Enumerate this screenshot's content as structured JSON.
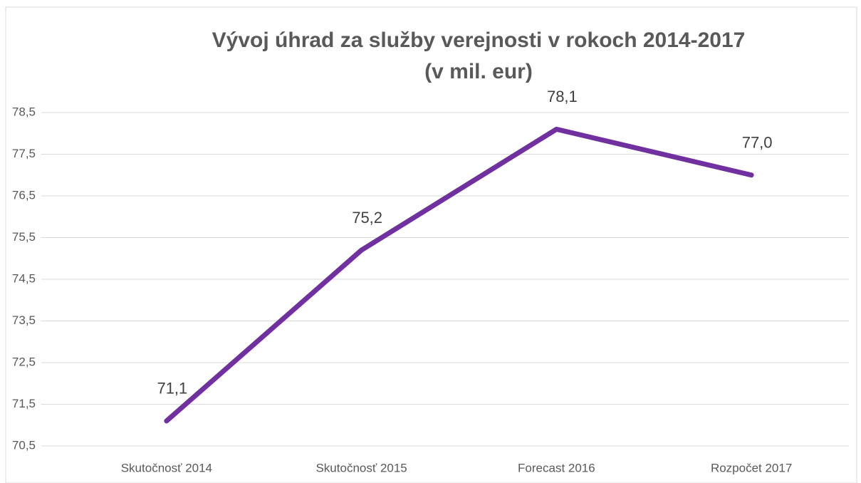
{
  "chart_data": {
    "type": "line",
    "title": "Vývoj úhrad za služby verejnosti v rokoch 2014-2017",
    "subtitle": "(v mil. eur)",
    "categories": [
      "Skutočnosť 2014",
      "Skutočnosť 2015",
      "Forecast 2016",
      "Rozpočet 2017"
    ],
    "values": [
      71.1,
      75.2,
      78.1,
      77.0
    ],
    "value_labels": [
      "71,1",
      "75,2",
      "78,1",
      "77,0"
    ],
    "color": "#7030a0",
    "ylim": [
      70.5,
      78.5
    ],
    "yticks": [
      {
        "value": 70.5,
        "label": "70,5"
      },
      {
        "value": 71.5,
        "label": "71,5"
      },
      {
        "value": 72.5,
        "label": "72,5"
      },
      {
        "value": 73.5,
        "label": "73,5"
      },
      {
        "value": 74.5,
        "label": "74,5"
      },
      {
        "value": 75.5,
        "label": "75,5"
      },
      {
        "value": 76.5,
        "label": "76,5"
      },
      {
        "value": 77.5,
        "label": "77,5"
      },
      {
        "value": 78.5,
        "label": "78,5"
      }
    ],
    "grid": true
  }
}
